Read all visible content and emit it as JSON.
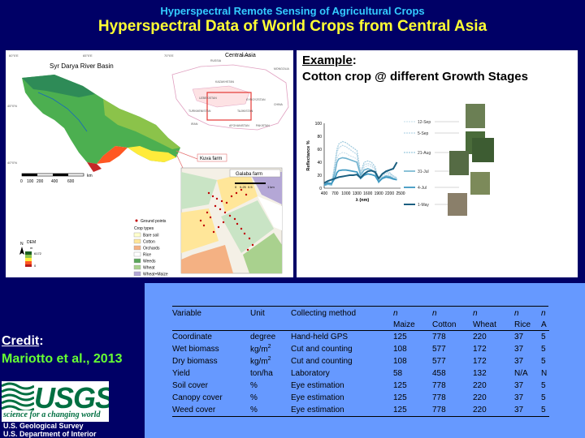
{
  "header": {
    "subtitle": "Hyperspectral Remote Sensing of Agricultural Crops",
    "title": "Hyperspectral Data of World Crops from Central Asia"
  },
  "map": {
    "basin_title": "Syr Darya River Basin",
    "inset_title": "Central Asia",
    "coords_top": [
      "60°0'E",
      "65°0'E",
      "70°0'E",
      "75°0'E"
    ],
    "coords_left": [
      "45°0'N",
      "40°0'N"
    ],
    "countries": [
      "RUSSIA",
      "MONGOLIA",
      "KAZAKHSTAN",
      "UZBEKISTAN",
      "KYRGYZSTAN",
      "TURKMENISTAN",
      "TAJIKISTAN",
      "CHINA",
      "IRAN",
      "AFGHANISTAN",
      "PAKISTAN"
    ],
    "scale_label": "km",
    "scale_ticks": [
      "0",
      "100",
      "200",
      "400",
      "600"
    ],
    "kuva_label": "Kuva farm",
    "galaba_label": "Galaba farm",
    "galaba_scale_ticks": [
      "0",
      "0.25",
      "0.5",
      "1 km"
    ],
    "dem_label": "DEM",
    "dem_unit": "m",
    "dem_max": "6172",
    "dem_min": "0",
    "north_label": "N",
    "legend": {
      "ground_points": "Ground points",
      "crop_types_title": "Crop types",
      "items": [
        "Bare soil",
        "Cotton",
        "Orchards",
        "Rice",
        "Weeds",
        "Wheat",
        "Wheat+Maize"
      ],
      "colors": [
        "#ffffcc",
        "#ffe699",
        "#f4b183",
        "#ffffff",
        "#5aa65a",
        "#a9d18e",
        "#b4a7d6"
      ]
    }
  },
  "example": {
    "label": "Example",
    "label_suffix": ":",
    "subtitle": "Cotton crop @ different Growth Stages"
  },
  "chart_data": {
    "type": "line",
    "xlabel": "λ (nm)",
    "ylabel": "Reflectance %",
    "xlim": [
      400,
      2500
    ],
    "ylim": [
      0,
      100
    ],
    "x_ticks": [
      400,
      700,
      1000,
      1300,
      1600,
      1900,
      2200,
      2500
    ],
    "y_ticks": [
      0,
      20,
      40,
      60,
      80,
      100
    ],
    "x": [
      400,
      500,
      600,
      700,
      750,
      800,
      900,
      1000,
      1100,
      1200,
      1300,
      1400,
      1500,
      1600,
      1700,
      1800,
      1900,
      2000,
      2100,
      2200,
      2300,
      2400
    ],
    "series": [
      {
        "name": "12-Sep",
        "color": "#cfe3ee",
        "values": [
          5,
          7,
          6,
          30,
          45,
          52,
          55,
          54,
          50,
          48,
          45,
          20,
          32,
          35,
          33,
          28,
          10,
          18,
          22,
          20,
          16,
          14
        ]
      },
      {
        "name": "5-Sep",
        "color": "#b7d6e6",
        "values": [
          5,
          7,
          6,
          35,
          55,
          62,
          66,
          64,
          60,
          56,
          52,
          22,
          36,
          38,
          36,
          30,
          10,
          20,
          24,
          22,
          18,
          15
        ]
      },
      {
        "name": "21-Aug",
        "color": "#9ec9dd",
        "values": [
          4,
          6,
          5,
          40,
          60,
          68,
          72,
          70,
          66,
          62,
          58,
          24,
          40,
          42,
          40,
          33,
          11,
          22,
          26,
          24,
          19,
          16
        ]
      },
      {
        "name": "31-Jul",
        "color": "#6fb2cf",
        "values": [
          4,
          6,
          5,
          25,
          40,
          45,
          47,
          46,
          44,
          42,
          40,
          20,
          28,
          30,
          28,
          24,
          9,
          16,
          19,
          18,
          15,
          13
        ]
      },
      {
        "name": "4-Jul",
        "color": "#3d98c1",
        "values": [
          5,
          8,
          7,
          16,
          24,
          27,
          28,
          28,
          27,
          26,
          25,
          15,
          20,
          22,
          21,
          19,
          10,
          15,
          17,
          16,
          14,
          13
        ]
      },
      {
        "name": "1-May",
        "color": "#1b5f80",
        "values": [
          8,
          11,
          13,
          15,
          16,
          17,
          18,
          19,
          20,
          20,
          21,
          16,
          22,
          26,
          27,
          25,
          15,
          22,
          26,
          28,
          30,
          40
        ]
      }
    ]
  },
  "credit": {
    "label": "Credit",
    "label_suffix": ":",
    "name": "Mariotto et al., 2013"
  },
  "usgs": {
    "logo_text": "USGS",
    "tagline": "science for a changing world",
    "line1": "U.S. Geological Survey",
    "line2": "U.S. Department of Interior"
  },
  "table": {
    "headers_row1": [
      "Variable",
      "Unit",
      "Collecting method",
      "n",
      "n",
      "n",
      "n",
      "n"
    ],
    "headers_row2": [
      "",
      "",
      "",
      "Maize",
      "Cotton",
      "Wheat",
      "Rice",
      "A"
    ],
    "rows": [
      {
        "variable": "Coordinate",
        "unit": "degree",
        "unit_sup": "",
        "method": "Hand-held GPS",
        "maize": "125",
        "cotton": "778",
        "wheat": "220",
        "rice": "37",
        "a": "5"
      },
      {
        "variable": "Wet biomass",
        "unit": "kg/m",
        "unit_sup": "2",
        "method": "Cut and counting",
        "maize": "108",
        "cotton": "577",
        "wheat": "172",
        "rice": "37",
        "a": "5"
      },
      {
        "variable": "Dry biomass",
        "unit": "kg/m",
        "unit_sup": "2",
        "method": "Cut and counting",
        "maize": "108",
        "cotton": "577",
        "wheat": "172",
        "rice": "37",
        "a": "5"
      },
      {
        "variable": "Yield",
        "unit": "ton/ha",
        "unit_sup": "",
        "method": "Laboratory",
        "maize": "58",
        "cotton": "458",
        "wheat": "132",
        "rice": "N/A",
        "a": "N"
      },
      {
        "variable": "Soil cover",
        "unit": "%",
        "unit_sup": "",
        "method": "Eye estimation",
        "maize": "125",
        "cotton": "778",
        "wheat": "220",
        "rice": "37",
        "a": "5"
      },
      {
        "variable": "Canopy cover",
        "unit": "%",
        "unit_sup": "",
        "method": "Eye estimation",
        "maize": "125",
        "cotton": "778",
        "wheat": "220",
        "rice": "37",
        "a": "5"
      },
      {
        "variable": "Weed cover",
        "unit": "%",
        "unit_sup": "",
        "method": "Eye estimation",
        "maize": "125",
        "cotton": "778",
        "wheat": "220",
        "rice": "37",
        "a": "5"
      }
    ]
  }
}
